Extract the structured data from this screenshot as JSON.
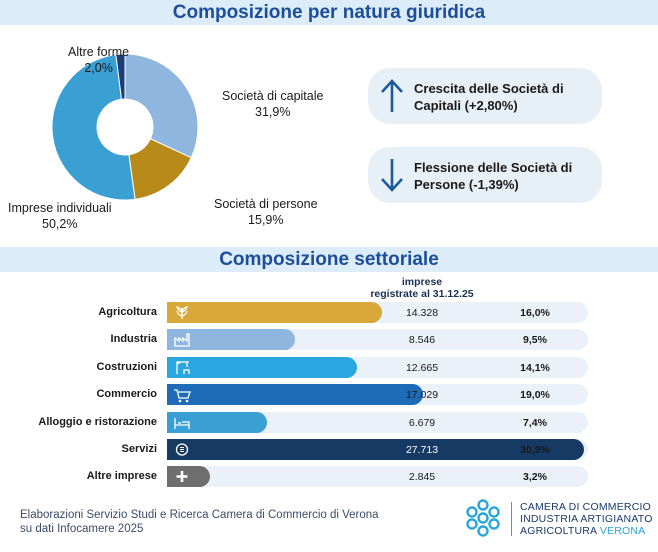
{
  "header": {
    "title": "Composizione per natura giuridica"
  },
  "pie": {
    "chart_data": {
      "type": "pie",
      "title": "Composizione per natura giuridica",
      "slices": [
        {
          "label": "Società di capitale",
          "value": 31.9,
          "display": "31,9%",
          "color": "#8fb6de"
        },
        {
          "label": "Società di persone",
          "value": 15.9,
          "display": "15,9%",
          "color": "#b88a1a"
        },
        {
          "label": "Imprese individuali",
          "value": 50.2,
          "display": "50,2%",
          "color": "#3a9fd3"
        },
        {
          "label": "Altre forme",
          "value": 2.0,
          "display": "2,0%",
          "color": "#1a3e7a"
        }
      ]
    }
  },
  "callouts": [
    {
      "text": "Crescita delle Società di Capitali (+2,80%)",
      "icon": "arrow-up-icon"
    },
    {
      "text": "Flessione delle Società di Persone (-1,39%)",
      "icon": "arrow-down-icon"
    }
  ],
  "sector": {
    "title": "Composizione settoriale",
    "column_header_line1": "imprese",
    "column_header_line2": "registrate al 31.12.25"
  },
  "chart_data": {
    "type": "bar",
    "title": "Composizione settoriale",
    "categories": [
      "Agricoltura",
      "Industria",
      "Costruzioni",
      "Commercio",
      "Alloggio e ristorazione",
      "Servizi",
      "Altre imprese"
    ],
    "values": [
      14328,
      8546,
      12665,
      17029,
      6679,
      27713,
      2845
    ],
    "values_display": [
      "14.328",
      "8.546",
      "12.665",
      "17.029",
      "6.679",
      "27.713",
      "2.845"
    ],
    "percent_display": [
      "16,0%",
      "9,5%",
      "14,1%",
      "19,0%",
      "7,4%",
      "30,9%",
      "3,2%"
    ],
    "colors": [
      "#d9a83a",
      "#8fb6de",
      "#2aa6e0",
      "#1e6bb8",
      "#3a9fd3",
      "#163a63",
      "#6e6e6e"
    ],
    "icons": [
      "wheat-icon",
      "factory-icon",
      "crane-icon",
      "cart-icon",
      "bed-icon",
      "service-icon",
      "plus-icon"
    ],
    "xlim": [
      0,
      28000
    ]
  },
  "footer": {
    "line1": "Elaborazioni Servizio Studi e Ricerca Camera di Commercio di Verona",
    "line2": "su dati Infocamere 2025"
  },
  "logo": {
    "line1": "CAMERA DI COMMERCIO",
    "line2": "INDUSTRIA ARTIGIANATO",
    "line3a": "AGRICOLTURA",
    "line3b": "VERONA"
  }
}
